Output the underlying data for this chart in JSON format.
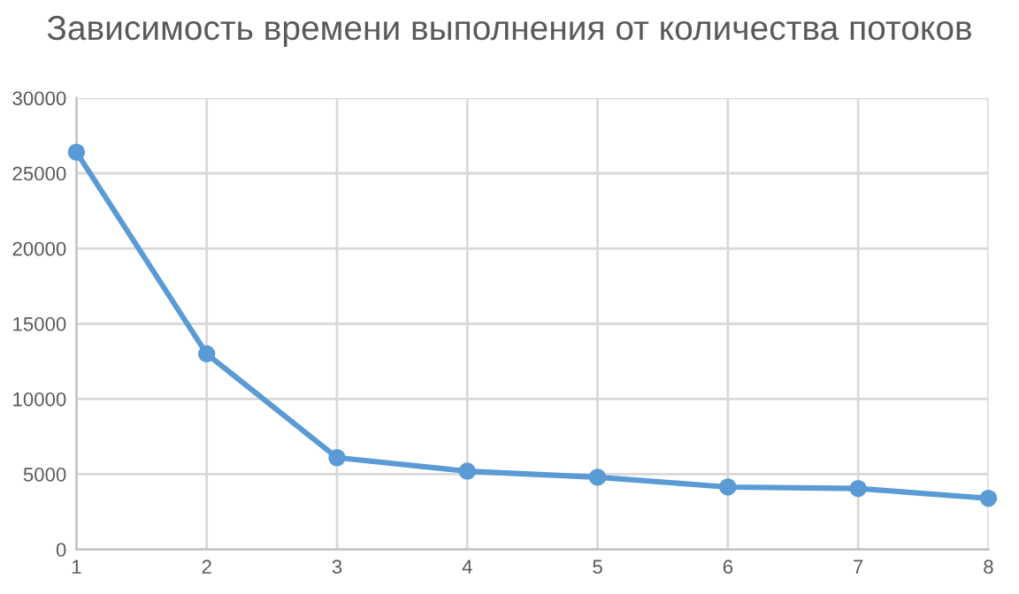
{
  "chart_data": {
    "type": "line",
    "title": "Зависимость времени выполнения от количества потоков",
    "x": [
      1,
      2,
      3,
      4,
      5,
      6,
      7,
      8
    ],
    "series": [
      {
        "color": "#5b9bd5",
        "values": [
          26400,
          13000,
          6100,
          5200,
          4800,
          4150,
          4050,
          3400
        ]
      }
    ],
    "xlim": [
      1,
      8
    ],
    "xticks": [
      1,
      2,
      3,
      4,
      5,
      6,
      7,
      8
    ],
    "ylim": [
      0,
      30000
    ],
    "yticks": [
      0,
      5000,
      10000,
      15000,
      20000,
      25000,
      30000
    ],
    "grid": true,
    "marker": "circle",
    "line_style": "solid"
  }
}
